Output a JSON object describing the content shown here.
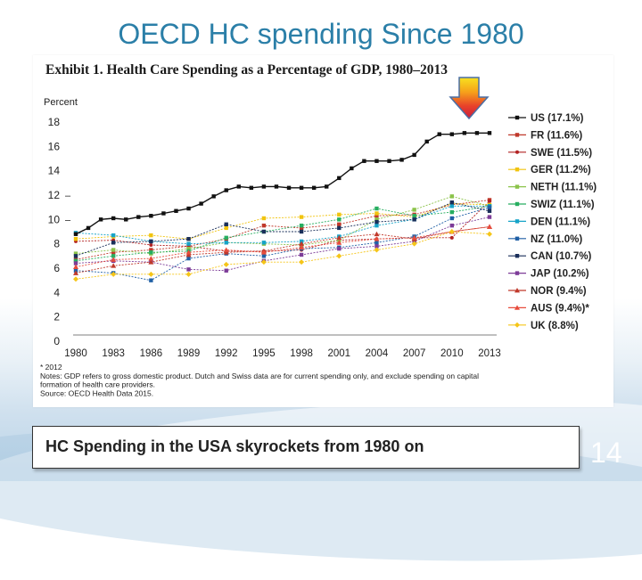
{
  "slide": {
    "title": "OECD  HC spending Since 1980",
    "caption": "HC Spending in the USA skyrockets from 1980 on",
    "page_number": "14"
  },
  "chart_data": {
    "type": "line",
    "title": "Exhibit 1. Health Care Spending as a Percentage of GDP, 1980–2013",
    "ylabel": "Percent",
    "ylim": [
      0,
      18
    ],
    "yticks": [
      "0",
      "2",
      "4",
      "6",
      "8",
      "10",
      "12",
      "14",
      "16",
      "18"
    ],
    "xlim": [
      1980,
      2013
    ],
    "xticks": [
      "1980",
      "1983",
      "1986",
      "1989",
      "1992",
      "1995",
      "1998",
      "2001",
      "2004",
      "2007",
      "2010",
      "2013"
    ],
    "legend_position": "right",
    "notes": [
      "* 2012",
      "Notes: GDP refers to gross domestic product. Dutch and Swiss data are for current spending only, and exclude spending on capital",
      "formation of health care providers.",
      "Source: OECD Health Data 2015."
    ],
    "highlight": "arrow pointing to US series",
    "series": [
      {
        "name": "US (17.1%)",
        "color": "#111111",
        "marker": "square",
        "x": [
          1980,
          1981,
          1982,
          1983,
          1984,
          1985,
          1986,
          1987,
          1988,
          1989,
          1990,
          1991,
          1992,
          1993,
          1994,
          1995,
          1996,
          1997,
          1998,
          1999,
          2000,
          2001,
          2002,
          2003,
          2004,
          2005,
          2006,
          2007,
          2008,
          2009,
          2010,
          2011,
          2012,
          2013
        ],
        "values": [
          8.8,
          9.3,
          10.0,
          10.1,
          10.0,
          10.2,
          10.3,
          10.5,
          10.7,
          10.9,
          11.3,
          11.9,
          12.4,
          12.7,
          12.6,
          12.7,
          12.7,
          12.6,
          12.6,
          12.6,
          12.7,
          13.4,
          14.2,
          14.8,
          14.8,
          14.8,
          14.9,
          15.3,
          16.4,
          17.0,
          17.0,
          17.1,
          17.1,
          17.1
        ]
      },
      {
        "name": "FR (11.6%)",
        "color": "#c0392b",
        "marker": "square",
        "x": [
          1980,
          1983,
          1986,
          1989,
          1992,
          1995,
          1998,
          2001,
          2004,
          2007,
          2010,
          2013
        ],
        "values": [
          6.7,
          7.3,
          7.5,
          7.8,
          8.4,
          9.5,
          9.3,
          9.6,
          10.3,
          10.4,
          11.2,
          11.6
        ]
      },
      {
        "name": "SWE (11.5%)",
        "color": "#b22222",
        "marker": "dot",
        "x": [
          1980,
          1983,
          1986,
          1989,
          1992,
          1995,
          1998,
          2001,
          2004,
          2007,
          2010,
          2013
        ],
        "values": [
          8.2,
          8.3,
          7.9,
          7.8,
          7.4,
          7.4,
          7.5,
          8.3,
          8.4,
          8.5,
          8.5,
          11.5
        ]
      },
      {
        "name": "GER (11.2%)",
        "color": "#f1c40f",
        "marker": "square",
        "x": [
          1980,
          1983,
          1986,
          1989,
          1992,
          1995,
          1998,
          2001,
          2004,
          2007,
          2010,
          2013
        ],
        "values": [
          8.4,
          8.6,
          8.7,
          8.4,
          9.3,
          10.1,
          10.2,
          10.4,
          10.5,
          10.2,
          11.3,
          11.2
        ]
      },
      {
        "name": "NETH (11.1%)",
        "color": "#8bc34a",
        "marker": "square",
        "x": [
          1980,
          1983,
          1986,
          1989,
          1992,
          1995,
          1998,
          2001,
          2004,
          2007,
          2010,
          2013
        ],
        "values": [
          7.2,
          7.5,
          7.2,
          7.6,
          8.1,
          8.0,
          7.9,
          8.3,
          10.0,
          10.8,
          11.9,
          11.1
        ]
      },
      {
        "name": "SWIZ (11.1%)",
        "color": "#27ae60",
        "marker": "square",
        "x": [
          1980,
          1983,
          1986,
          1989,
          1992,
          1995,
          1998,
          2001,
          2004,
          2007,
          2010,
          2013
        ],
        "values": [
          6.6,
          7.0,
          7.3,
          7.4,
          8.5,
          9.0,
          9.5,
          10.0,
          10.9,
          10.3,
          10.6,
          11.1
        ]
      },
      {
        "name": "DEN (11.1%)",
        "color": "#16a3c8",
        "marker": "square",
        "x": [
          1980,
          1983,
          1986,
          1989,
          1992,
          1995,
          1998,
          2001,
          2004,
          2007,
          2010,
          2013
        ],
        "values": [
          8.9,
          8.7,
          8.2,
          8.0,
          8.1,
          8.1,
          8.2,
          8.6,
          9.5,
          10.0,
          11.1,
          11.1
        ]
      },
      {
        "name": "NZ (11.0%)",
        "color": "#1f5fa5",
        "marker": "square",
        "x": [
          1980,
          1983,
          1986,
          1989,
          1992,
          1995,
          1998,
          2001,
          2004,
          2007,
          2010,
          2013
        ],
        "values": [
          5.8,
          5.6,
          5.0,
          6.8,
          7.2,
          7.0,
          7.6,
          7.7,
          8.1,
          8.6,
          10.1,
          11.0
        ]
      },
      {
        "name": "CAN (10.7%)",
        "color": "#1a2f5a",
        "marker": "square",
        "x": [
          1980,
          1983,
          1986,
          1989,
          1992,
          1995,
          1998,
          2001,
          2004,
          2007,
          2010,
          2013
        ],
        "values": [
          7.0,
          8.1,
          8.2,
          8.4,
          9.6,
          9.0,
          9.0,
          9.3,
          9.8,
          10.0,
          11.4,
          10.7
        ]
      },
      {
        "name": "JAP (10.2%)",
        "color": "#7d3c98",
        "marker": "square",
        "x": [
          1980,
          1983,
          1986,
          1989,
          1992,
          1995,
          1998,
          2001,
          2004,
          2007,
          2010,
          2013
        ],
        "values": [
          6.4,
          6.6,
          6.5,
          5.9,
          5.8,
          6.6,
          7.1,
          7.6,
          7.8,
          8.2,
          9.5,
          10.2
        ]
      },
      {
        "name": "NOR (9.4%)",
        "color": "#c0392b",
        "marker": "triangle",
        "x": [
          1980,
          1983,
          1986,
          1989,
          1992,
          1995,
          1998,
          2001,
          2004,
          2007,
          2010,
          2013
        ],
        "values": [
          5.6,
          6.2,
          6.5,
          7.1,
          7.3,
          7.4,
          8.0,
          8.5,
          8.8,
          8.4,
          9.0,
          9.4
        ]
      },
      {
        "name": "AUS (9.4%)*",
        "color": "#e74c3c",
        "marker": "triangle",
        "x": [
          1980,
          1983,
          1986,
          1989,
          1992,
          1995,
          1998,
          2001,
          2004,
          2007,
          2010,
          2013
        ],
        "values": [
          6.1,
          6.7,
          6.8,
          7.3,
          7.5,
          7.3,
          7.7,
          8.1,
          8.4,
          8.5,
          9.0,
          9.4
        ]
      },
      {
        "name": "UK (8.8%)",
        "color": "#f5c518",
        "marker": "diamond",
        "x": [
          1980,
          1983,
          1986,
          1989,
          1992,
          1995,
          1998,
          2001,
          2004,
          2007,
          2010,
          2013
        ],
        "values": [
          5.1,
          5.5,
          5.5,
          5.5,
          6.3,
          6.5,
          6.5,
          7.0,
          7.5,
          8.0,
          9.0,
          8.8
        ]
      }
    ]
  }
}
